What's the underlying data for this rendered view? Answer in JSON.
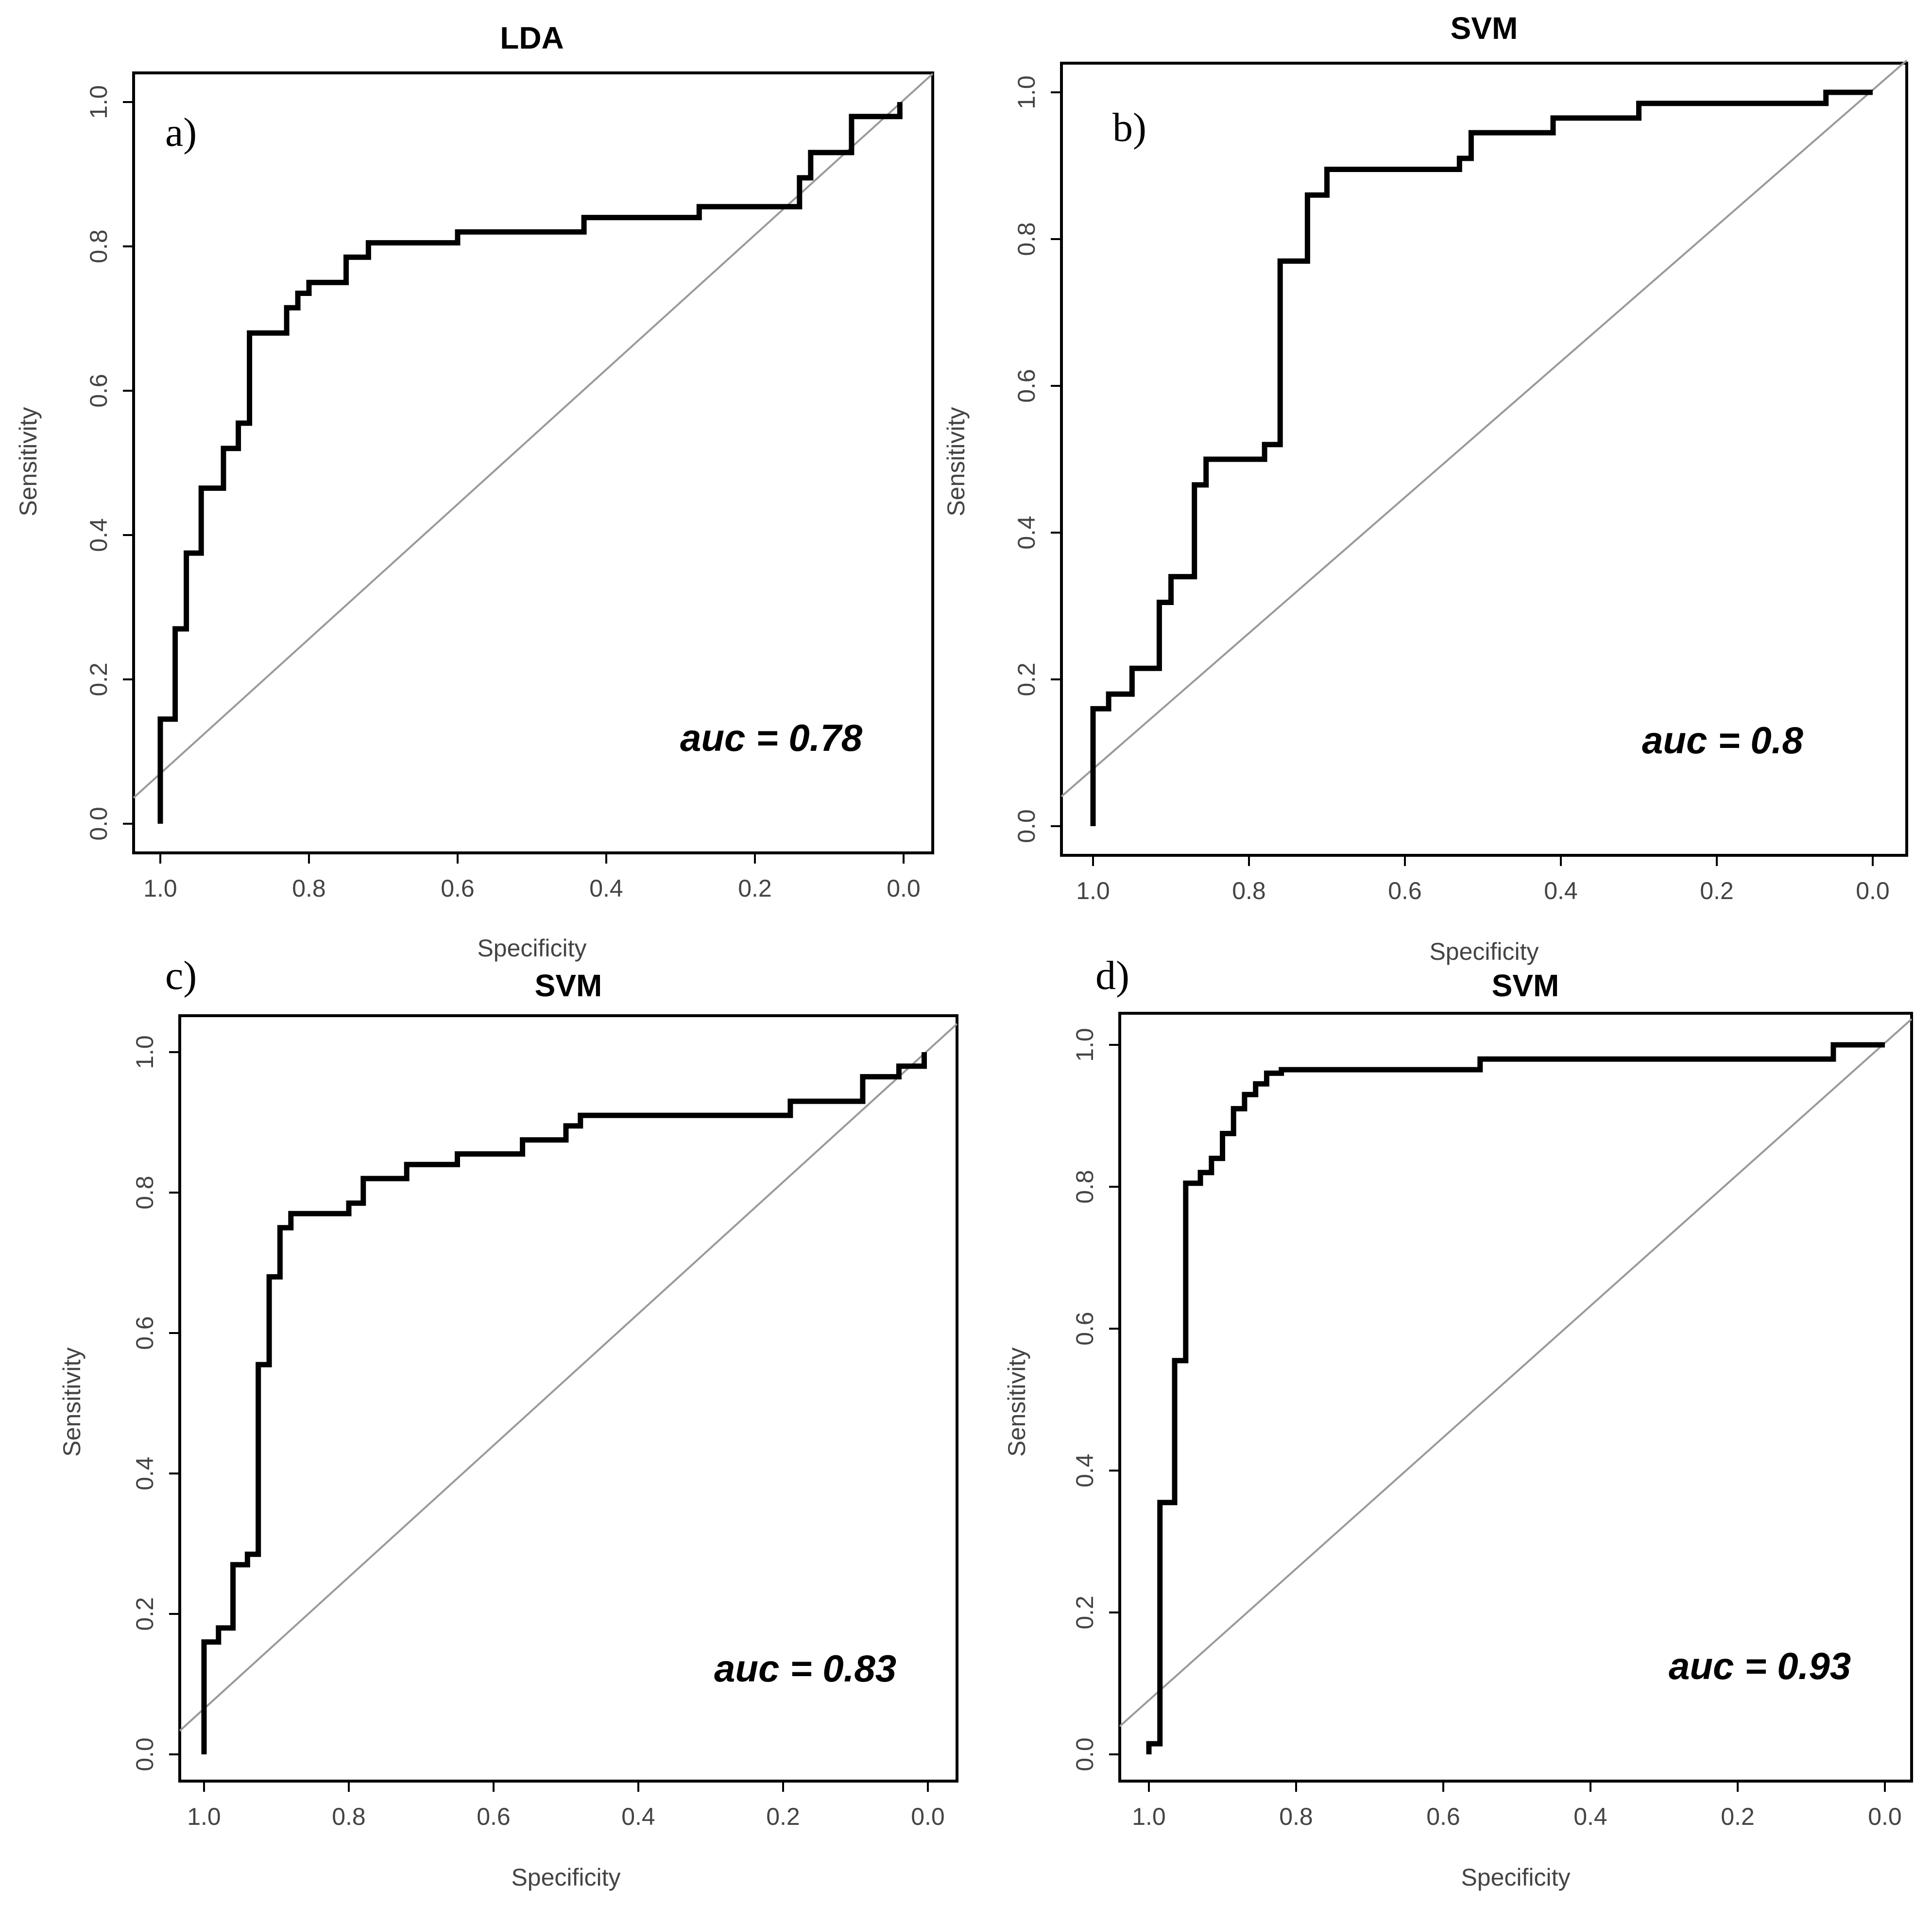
{
  "chart_data": [
    {
      "panel": "a)",
      "type": "line",
      "title": "LDA",
      "xlabel": "Specificity",
      "ylabel": "Sensitivity",
      "xlim": [
        1.0,
        0.0
      ],
      "ylim": [
        0.0,
        1.0
      ],
      "x_reversed": true,
      "xticks": [
        "1.0",
        "0.8",
        "0.6",
        "0.4",
        "0.2",
        "0.0"
      ],
      "yticks": [
        "0.0",
        "0.2",
        "0.4",
        "0.6",
        "0.8",
        "1.0"
      ],
      "annotation": "auc = 0.78",
      "reference_line": "diagonal",
      "series": [
        {
          "x": [
            1.0,
            1.0,
            0.98,
            0.98,
            0.965,
            0.965,
            0.945,
            0.945,
            0.915,
            0.915,
            0.895,
            0.895,
            0.88,
            0.88,
            0.83,
            0.83,
            0.815,
            0.815,
            0.8,
            0.8,
            0.75,
            0.75,
            0.72,
            0.72,
            0.6,
            0.6,
            0.43,
            0.43,
            0.275,
            0.275,
            0.14,
            0.14,
            0.125,
            0.125,
            0.07,
            0.07,
            0.005,
            0.005
          ],
          "y": [
            0.0,
            0.145,
            0.145,
            0.27,
            0.27,
            0.375,
            0.375,
            0.465,
            0.465,
            0.52,
            0.52,
            0.555,
            0.555,
            0.68,
            0.68,
            0.715,
            0.715,
            0.735,
            0.735,
            0.75,
            0.75,
            0.785,
            0.785,
            0.805,
            0.805,
            0.82,
            0.82,
            0.84,
            0.84,
            0.855,
            0.855,
            0.895,
            0.895,
            0.93,
            0.93,
            0.98,
            0.98,
            1.0
          ]
        }
      ]
    },
    {
      "panel": "b)",
      "type": "line",
      "title": "SVM",
      "xlabel": "Specificity",
      "ylabel": "Sensitivity",
      "xlim": [
        1.0,
        0.0
      ],
      "ylim": [
        0.0,
        1.0
      ],
      "x_reversed": true,
      "xticks": [
        "1.0",
        "0.8",
        "0.6",
        "0.4",
        "0.2",
        "0.0"
      ],
      "yticks": [
        "0.0",
        "0.2",
        "0.4",
        "0.6",
        "0.8",
        "1.0"
      ],
      "annotation": "auc = 0.8",
      "reference_line": "diagonal",
      "series": [
        {
          "x": [
            1.0,
            1.0,
            0.98,
            0.98,
            0.95,
            0.95,
            0.915,
            0.915,
            0.9,
            0.9,
            0.87,
            0.87,
            0.855,
            0.855,
            0.78,
            0.78,
            0.76,
            0.76,
            0.725,
            0.725,
            0.7,
            0.7,
            0.53,
            0.53,
            0.515,
            0.515,
            0.41,
            0.41,
            0.3,
            0.3,
            0.06,
            0.06,
            0.0
          ],
          "y": [
            0.0,
            0.16,
            0.16,
            0.18,
            0.18,
            0.215,
            0.215,
            0.305,
            0.305,
            0.34,
            0.34,
            0.465,
            0.465,
            0.5,
            0.5,
            0.52,
            0.52,
            0.77,
            0.77,
            0.86,
            0.86,
            0.895,
            0.895,
            0.91,
            0.91,
            0.945,
            0.945,
            0.965,
            0.965,
            0.985,
            0.985,
            1.0,
            1.0
          ]
        }
      ]
    },
    {
      "panel": "c)",
      "type": "line",
      "title": "SVM",
      "xlabel": "Specificity",
      "ylabel": "Sensitivity",
      "xlim": [
        1.0,
        0.0
      ],
      "ylim": [
        0.0,
        1.0
      ],
      "x_reversed": true,
      "xticks": [
        "1.0",
        "0.8",
        "0.6",
        "0.4",
        "0.2",
        "0.0"
      ],
      "yticks": [
        "0.0",
        "0.2",
        "0.4",
        "0.6",
        "0.8",
        "1.0"
      ],
      "annotation": "auc = 0.83",
      "reference_line": "diagonal",
      "series": [
        {
          "x": [
            1.0,
            1.0,
            0.98,
            0.98,
            0.96,
            0.96,
            0.94,
            0.94,
            0.925,
            0.925,
            0.91,
            0.91,
            0.895,
            0.895,
            0.88,
            0.88,
            0.8,
            0.8,
            0.78,
            0.78,
            0.72,
            0.72,
            0.65,
            0.65,
            0.56,
            0.56,
            0.5,
            0.5,
            0.48,
            0.48,
            0.19,
            0.19,
            0.09,
            0.09,
            0.04,
            0.04,
            0.005,
            0.005
          ],
          "y": [
            0.0,
            0.16,
            0.16,
            0.18,
            0.18,
            0.27,
            0.27,
            0.285,
            0.285,
            0.555,
            0.555,
            0.68,
            0.68,
            0.75,
            0.75,
            0.77,
            0.77,
            0.785,
            0.785,
            0.82,
            0.82,
            0.84,
            0.84,
            0.855,
            0.855,
            0.875,
            0.875,
            0.895,
            0.895,
            0.91,
            0.91,
            0.93,
            0.93,
            0.965,
            0.965,
            0.98,
            0.98,
            1.0
          ]
        }
      ]
    },
    {
      "panel": "d)",
      "type": "line",
      "title": "SVM",
      "xlabel": "Specificity",
      "ylabel": "Sensitivity",
      "xlim": [
        1.0,
        0.0
      ],
      "ylim": [
        0.0,
        1.0
      ],
      "x_reversed": true,
      "xticks": [
        "1.0",
        "0.8",
        "0.6",
        "0.4",
        "0.2",
        "0.0"
      ],
      "yticks": [
        "0.0",
        "0.2",
        "0.4",
        "0.6",
        "0.8",
        "1.0"
      ],
      "annotation": "auc = 0.93",
      "reference_line": "diagonal",
      "series": [
        {
          "x": [
            1.0,
            1.0,
            0.985,
            0.985,
            0.965,
            0.965,
            0.95,
            0.95,
            0.93,
            0.93,
            0.915,
            0.915,
            0.9,
            0.9,
            0.885,
            0.885,
            0.87,
            0.87,
            0.855,
            0.855,
            0.84,
            0.84,
            0.82,
            0.82,
            0.55,
            0.55,
            0.07,
            0.07,
            0.0
          ],
          "y": [
            0.0,
            0.015,
            0.015,
            0.355,
            0.355,
            0.555,
            0.555,
            0.805,
            0.805,
            0.82,
            0.82,
            0.84,
            0.84,
            0.875,
            0.875,
            0.91,
            0.91,
            0.93,
            0.93,
            0.945,
            0.945,
            0.96,
            0.96,
            0.965,
            0.965,
            0.98,
            0.98,
            1.0,
            1.0
          ]
        }
      ]
    }
  ]
}
